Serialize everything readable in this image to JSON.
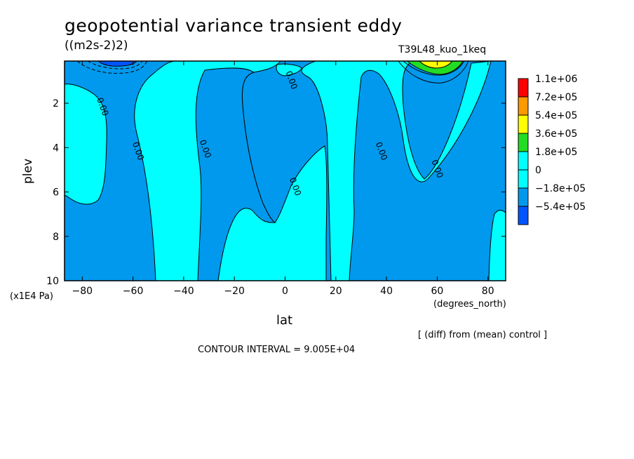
{
  "header": {
    "title": "geopotential variance transient eddy",
    "units": "((m2s-2)2)",
    "run_id": "T39L48_kuo_1keq"
  },
  "footer": {
    "diff_note": "[ (diff) from (mean) control ]",
    "contour_interval": "CONTOUR INTERVAL = 9.005E+04"
  },
  "chart_data": {
    "type": "heatmap",
    "title": "geopotential variance transient eddy",
    "xlabel": "lat",
    "x_unit": "(degrees_north)",
    "ylabel": "plev",
    "y_unit": "(x1E4 Pa)",
    "xlim": [
      -87,
      87
    ],
    "ylim": [
      10,
      0.1
    ],
    "x_ticks": [
      -80,
      -60,
      -40,
      -20,
      0,
      20,
      40,
      60,
      80
    ],
    "x_tick_labels": [
      "−80",
      "−60",
      "−40",
      "−20",
      "0",
      "20",
      "40",
      "60",
      "80"
    ],
    "y_ticks": [
      2,
      4,
      6,
      8,
      10
    ],
    "y_tick_labels": [
      "2",
      "4",
      "6",
      "8",
      "10"
    ],
    "contour_labels": [
      {
        "text": "0.00",
        "lat": -73,
        "plev": 2.2
      },
      {
        "text": "0.00",
        "lat": -59,
        "plev": 4.2
      },
      {
        "text": "0.00",
        "lat": -32.5,
        "plev": 4.1
      },
      {
        "text": "0.00",
        "lat": 3,
        "plev": 5.8
      },
      {
        "text": "0.00",
        "lat": 37,
        "plev": 4.2
      },
      {
        "text": "0.00",
        "lat": 59,
        "plev": 5.0
      },
      {
        "text": "0.00",
        "lat": 1.5,
        "plev": 1.0
      }
    ],
    "legend": {
      "placement": "right",
      "levels": [
        {
          "label": "1.1e+06",
          "color": "#ff0000"
        },
        {
          "label": "7.2e+05",
          "color": "#ff9900"
        },
        {
          "label": "5.4e+05",
          "color": "#ffff00"
        },
        {
          "label": "3.6e+05",
          "color": "#22dd22"
        },
        {
          "label": "1.8e+05",
          "color": "#00ffff"
        },
        {
          "label": "0",
          "color": "#00ffff"
        },
        {
          "label": "−1.8e+05",
          "color": "#0099ee"
        },
        {
          "label": "−5.4e+05",
          "color": "#0055ff"
        }
      ]
    },
    "colors": {
      "negative": "#0099ee",
      "neutral": "#00ffff",
      "strong_negative": "#0055ff"
    },
    "grid": false
  }
}
